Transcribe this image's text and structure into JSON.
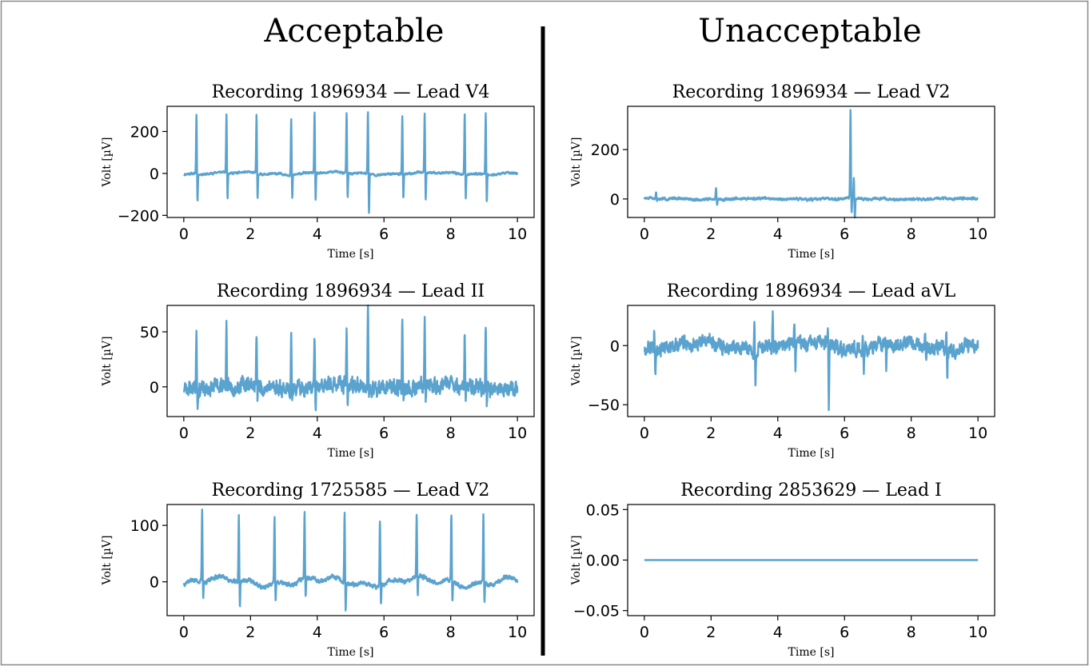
{
  "figure": {
    "left_heading": "Acceptable",
    "right_heading": "Unacceptable"
  },
  "chart_data": [
    {
      "type": "line",
      "column": "Acceptable",
      "title": "Recording 1896934 — Lead V4",
      "xlabel": "Time [s]",
      "ylabel": "Volt [µV]",
      "xlim": [
        -0.5,
        10.5
      ],
      "ylim": [
        -210,
        320
      ],
      "xticks": [
        0,
        2,
        4,
        6,
        8,
        10
      ],
      "yticks": [
        -200,
        0,
        200
      ],
      "ytick_labels": [
        "−200",
        "0",
        "200"
      ],
      "color": "#5ba3cf",
      "signal": {
        "baseline_wander": 8,
        "noise": 4,
        "seed": 11,
        "beats": [
          {
            "t": 0.38,
            "r": 290,
            "s": -140
          },
          {
            "t": 1.28,
            "r": 280,
            "s": -135
          },
          {
            "t": 2.18,
            "r": 285,
            "s": -130
          },
          {
            "t": 3.22,
            "r": 272,
            "s": -125
          },
          {
            "t": 3.92,
            "r": 300,
            "s": -140
          },
          {
            "t": 4.88,
            "r": 292,
            "s": -130
          },
          {
            "t": 5.52,
            "r": 305,
            "s": -200
          },
          {
            "t": 6.55,
            "r": 280,
            "s": -130
          },
          {
            "t": 7.22,
            "r": 288,
            "s": -140
          },
          {
            "t": 8.42,
            "r": 292,
            "s": -125
          },
          {
            "t": 9.05,
            "r": 295,
            "s": -140
          }
        ]
      }
    },
    {
      "type": "line",
      "column": "Acceptable",
      "title": "Recording 1896934 — Lead II",
      "xlabel": "Time [s]",
      "ylabel": "Volt [µV]",
      "xlim": [
        -0.5,
        10.5
      ],
      "ylim": [
        -27,
        74
      ],
      "xticks": [
        0,
        2,
        4,
        6,
        8,
        10
      ],
      "yticks": [
        0,
        50
      ],
      "ytick_labels": [
        "0",
        "50"
      ],
      "color": "#5ba3cf",
      "signal": {
        "baseline_wander": 3,
        "noise": 5.5,
        "seed": 23,
        "beats": [
          {
            "t": 0.38,
            "r": 55,
            "s": -15
          },
          {
            "t": 1.28,
            "r": 56,
            "s": -12
          },
          {
            "t": 2.18,
            "r": 46,
            "s": -15
          },
          {
            "t": 3.22,
            "r": 58,
            "s": -14
          },
          {
            "t": 3.92,
            "r": 48,
            "s": -24
          },
          {
            "t": 4.88,
            "r": 50,
            "s": -14
          },
          {
            "t": 5.52,
            "r": 72,
            "s": -18
          },
          {
            "t": 6.55,
            "r": 60,
            "s": -14
          },
          {
            "t": 7.22,
            "r": 60,
            "s": -20
          },
          {
            "t": 8.42,
            "r": 55,
            "s": -14
          },
          {
            "t": 9.05,
            "r": 61,
            "s": -16
          }
        ]
      }
    },
    {
      "type": "line",
      "column": "Acceptable",
      "title": "Recording 1725585 — Lead V2",
      "xlabel": "Time [s]",
      "ylabel": "Volt [µV]",
      "xlim": [
        -0.5,
        10.5
      ],
      "ylim": [
        -60,
        137
      ],
      "xticks": [
        0,
        2,
        4,
        6,
        8,
        10
      ],
      "yticks": [
        0,
        100
      ],
      "ytick_labels": [
        "0",
        "100"
      ],
      "color": "#5ba3cf",
      "signal": {
        "baseline_wander": 10,
        "noise": 3,
        "seed": 37,
        "beats": [
          {
            "t": 0.55,
            "r": 127,
            "s": -30
          },
          {
            "t": 1.65,
            "r": 120,
            "s": -52
          },
          {
            "t": 2.72,
            "r": 117,
            "s": -38
          },
          {
            "t": 3.62,
            "r": 120,
            "s": -35
          },
          {
            "t": 4.82,
            "r": 126,
            "s": -52
          },
          {
            "t": 5.88,
            "r": 118,
            "s": -38
          },
          {
            "t": 6.98,
            "r": 116,
            "s": -35
          },
          {
            "t": 8.02,
            "r": 119,
            "s": -36
          },
          {
            "t": 8.98,
            "r": 122,
            "s": -38
          }
        ]
      }
    },
    {
      "type": "line",
      "column": "Unacceptable",
      "title": "Recording 1896934 — Lead V2",
      "xlabel": "Time [s]",
      "ylabel": "Volt [µV]",
      "xlim": [
        -0.5,
        10.5
      ],
      "ylim": [
        -75,
        375
      ],
      "xticks": [
        0,
        2,
        4,
        6,
        8,
        10
      ],
      "yticks": [
        0,
        200
      ],
      "ytick_labels": [
        "0",
        "200"
      ],
      "color": "#5ba3cf",
      "signal": {
        "baseline_wander": 3,
        "noise": 4,
        "seed": 51,
        "beats": [
          {
            "t": 0.35,
            "r": 25,
            "s": -10
          },
          {
            "t": 2.15,
            "r": 50,
            "s": -25
          },
          {
            "t": 6.18,
            "r": 360,
            "s": -70
          },
          {
            "t": 6.28,
            "r": 80,
            "s": -95
          }
        ]
      }
    },
    {
      "type": "line",
      "column": "Unacceptable",
      "title": "Recording 1896934 — Lead aVL",
      "xlabel": "Time [s]",
      "ylabel": "Volt [µV]",
      "xlim": [
        -0.5,
        10.5
      ],
      "ylim": [
        -60,
        34
      ],
      "xticks": [
        0,
        2,
        4,
        6,
        8,
        10
      ],
      "yticks": [
        -50,
        0
      ],
      "ytick_labels": [
        "−50",
        "0"
      ],
      "color": "#5ba3cf",
      "signal": {
        "baseline_wander": 4,
        "noise": 4.5,
        "seed": 67,
        "beats": [
          {
            "t": 0.3,
            "r": 17,
            "s": -22
          },
          {
            "t": 3.3,
            "r": 30,
            "s": -32
          },
          {
            "t": 3.85,
            "r": 27,
            "s": -10
          },
          {
            "t": 4.5,
            "r": 20,
            "s": -20
          },
          {
            "t": 5.5,
            "r": 15,
            "s": -56
          },
          {
            "t": 6.55,
            "r": 10,
            "s": -18
          },
          {
            "t": 7.22,
            "r": 10,
            "s": -22
          },
          {
            "t": 8.42,
            "r": 8,
            "s": -17
          },
          {
            "t": 9.05,
            "r": 18,
            "s": -22
          }
        ]
      }
    },
    {
      "type": "line",
      "column": "Unacceptable",
      "title": "Recording 2853629 — Lead I",
      "xlabel": "Time [s]",
      "ylabel": "Volt [µV]",
      "xlim": [
        -0.5,
        10.5
      ],
      "ylim": [
        -0.055,
        0.055
      ],
      "xticks": [
        0,
        2,
        4,
        6,
        8,
        10
      ],
      "yticks": [
        -0.05,
        0.0,
        0.05
      ],
      "ytick_labels": [
        "−0.05",
        "0.00",
        "0.05"
      ],
      "color": "#5ba3cf",
      "signal": {
        "flat": 0.0
      }
    }
  ]
}
